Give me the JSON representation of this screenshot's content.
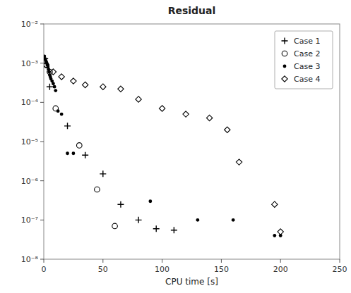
{
  "chart_data": {
    "type": "scatter",
    "title": "Residual",
    "x_label": "CPU time [s]",
    "log": "y",
    "grid": false,
    "legend": "upper-right",
    "xlim": [
      0,
      250
    ],
    "ylim": [
      1e-08,
      0.01
    ],
    "xticks": [
      0,
      50,
      100,
      150,
      200,
      250
    ],
    "yticks": [
      {
        "value": 1e-08,
        "label": "10⁻⁸"
      },
      {
        "value": 1e-07,
        "label": "10⁻⁷"
      },
      {
        "value": 1e-06,
        "label": "10⁻⁶"
      },
      {
        "value": 1e-05,
        "label": "10⁻⁵"
      },
      {
        "value": 0.0001,
        "label": "10⁻⁴"
      },
      {
        "value": 0.001,
        "label": "10⁻³"
      },
      {
        "value": 0.01,
        "label": "10⁻²"
      }
    ],
    "series": [
      {
        "name": "Case 1",
        "color": "black",
        "marker": "plus",
        "x": [
          1,
          5,
          20,
          35,
          50,
          65,
          80,
          95,
          110
        ],
        "values": [
          0.0013,
          0.00025,
          2.5e-05,
          4.5e-06,
          1.5e-06,
          2.5e-07,
          1e-07,
          6e-08,
          5.5e-08
        ]
      },
      {
        "name": "Case 2",
        "color": "black",
        "marker": "circle",
        "x": [
          2,
          5,
          10,
          30,
          45,
          60
        ],
        "values": [
          0.0009,
          0.0006,
          7e-05,
          8e-06,
          6e-07,
          7e-08
        ]
      },
      {
        "name": "Case 3",
        "color": "black",
        "marker": "dot",
        "x": [
          0.5,
          1,
          1.5,
          2,
          2.5,
          3,
          3.5,
          4,
          4.5,
          5,
          5.5,
          6,
          7,
          8,
          9,
          10,
          12,
          15,
          20,
          25,
          90,
          130,
          160,
          195,
          200
        ],
        "values": [
          0.0015,
          0.0013,
          0.0012,
          0.0011,
          0.001,
          0.0009,
          0.0008,
          0.0007,
          0.0006,
          0.0005,
          0.00045,
          0.0004,
          0.00035,
          0.0003,
          0.00025,
          0.0002,
          6e-05,
          5e-05,
          5e-06,
          5e-06,
          3e-07,
          1e-07,
          1e-07,
          4e-08,
          4e-08
        ]
      },
      {
        "name": "Case 4",
        "color": "black",
        "marker": "diamond",
        "x": [
          2,
          8,
          15,
          25,
          35,
          50,
          65,
          80,
          100,
          120,
          140,
          155,
          165,
          195,
          200
        ],
        "values": [
          0.0009,
          0.0006,
          0.00045,
          0.00035,
          0.00028,
          0.00025,
          0.00022,
          0.00012,
          7e-05,
          5e-05,
          4e-05,
          2e-05,
          3e-06,
          2.5e-07,
          5e-08
        ]
      }
    ]
  }
}
